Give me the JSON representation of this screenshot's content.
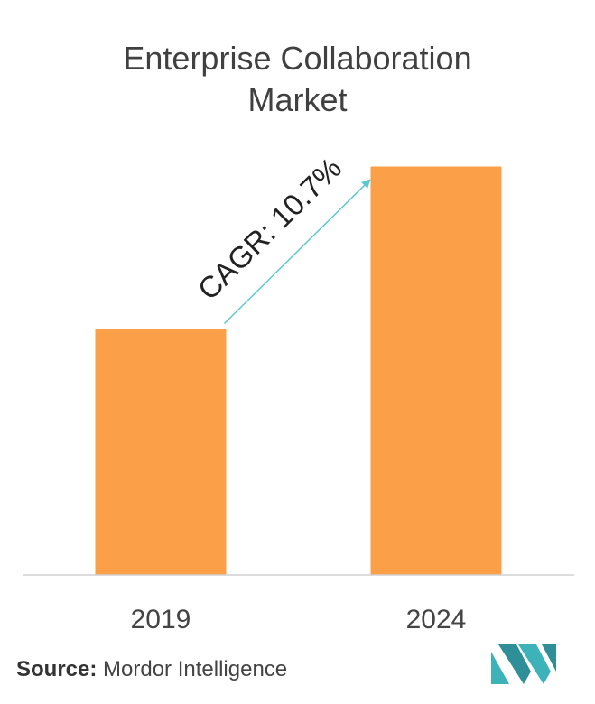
{
  "chart_data": {
    "type": "bar",
    "title": "Enterprise Collaboration Market",
    "title_lines": [
      "Enterprise Collaboration",
      "Market"
    ],
    "categories": [
      "2019",
      "2024"
    ],
    "values": [
      1.0,
      1.66
    ],
    "annotation": "CAGR: 10.7%",
    "ylim": [
      0,
      1.75
    ],
    "grid": false,
    "legend": "none"
  },
  "colors": {
    "bar": "#FBA048",
    "arrow": "#5BC8D0",
    "axis": "#D0D0D0",
    "logo": "#3DB3B9"
  },
  "source": {
    "label": "Source:",
    "text": "Mordor Intelligence"
  },
  "logo": {
    "icon": "mordor-intelligence-logo"
  }
}
